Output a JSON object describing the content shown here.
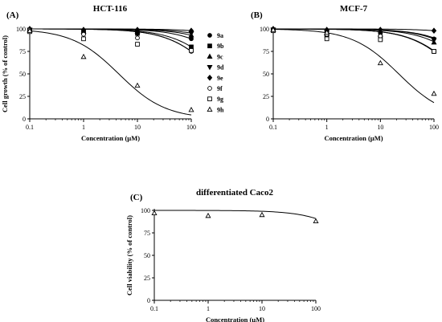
{
  "chart_data": [
    {
      "type": "scatter",
      "panel_label": "(A)",
      "title": "HCT-116",
      "xlabel": "Concentration (µM)",
      "ylabel": "Cell growth (% of control)",
      "x_scale": "log",
      "xlim": [
        0.1,
        100
      ],
      "ylim": [
        0,
        100
      ],
      "x_ticks": [
        "0.1",
        "1",
        "10",
        "100"
      ],
      "y_ticks": [
        "0",
        "25",
        "50",
        "75",
        "100"
      ],
      "legend_position": "right",
      "x": [
        0.1,
        1,
        10,
        100
      ],
      "series": [
        {
          "name": "9a",
          "marker": "circle-filled",
          "values": [
            99,
            97,
            96,
            89
          ],
          "fit": {
            "ic50": 800,
            "hill": 1
          }
        },
        {
          "name": "9b",
          "marker": "square-filled",
          "values": [
            98,
            96,
            95,
            80
          ],
          "fit": {
            "ic50": 400,
            "hill": 1
          }
        },
        {
          "name": "9c",
          "marker": "triangle-up-filled",
          "values": [
            99,
            97,
            97,
            93
          ],
          "fit": {
            "ic50": 1300,
            "hill": 1
          }
        },
        {
          "name": "9d",
          "marker": "triangle-down-filled",
          "values": [
            99,
            98,
            97,
            95
          ],
          "fit": {
            "ic50": 2000,
            "hill": 1
          }
        },
        {
          "name": "9e",
          "marker": "diamond-filled",
          "values": [
            100,
            99,
            99,
            98
          ],
          "fit": {
            "ic50": 5000,
            "hill": 1
          }
        },
        {
          "name": "9f",
          "marker": "circle-open",
          "values": [
            99,
            94,
            90,
            75
          ],
          "fit": {
            "ic50": 300,
            "hill": 1
          }
        },
        {
          "name": "9g",
          "marker": "square-open",
          "values": [
            97,
            89,
            83,
            76
          ],
          "fit": {
            "ic50": 300,
            "hill": 1
          }
        },
        {
          "name": "9h",
          "marker": "triangle-up-open",
          "values": [
            98,
            69,
            37,
            10
          ],
          "fit": {
            "ic50": 4.5,
            "hill": 1
          }
        }
      ]
    },
    {
      "type": "scatter",
      "panel_label": "(B)",
      "title": "MCF-7",
      "xlabel": "Concentration (µM)",
      "ylabel": "",
      "x_scale": "log",
      "xlim": [
        0.1,
        100
      ],
      "ylim": [
        0,
        100
      ],
      "x_ticks": [
        "0.1",
        "1",
        "10",
        "100"
      ],
      "y_ticks": [
        "0",
        "25",
        "50",
        "75",
        "100"
      ],
      "x": [
        0.1,
        1,
        10,
        100
      ],
      "series": [
        {
          "name": "9a",
          "marker": "circle-filled",
          "values": [
            99,
            97,
            95,
            89
          ],
          "fit": {
            "ic50": 800,
            "hill": 1
          }
        },
        {
          "name": "9b",
          "marker": "square-filled",
          "values": [
            99,
            92,
            89,
            75
          ],
          "fit": {
            "ic50": 300,
            "hill": 1
          }
        },
        {
          "name": "9c",
          "marker": "triangle-up-filled",
          "values": [
            99,
            95,
            94,
            85
          ],
          "fit": {
            "ic50": 600,
            "hill": 1
          }
        },
        {
          "name": "9d",
          "marker": "triangle-down-filled",
          "values": [
            99,
            96,
            95,
            88
          ],
          "fit": {
            "ic50": 900,
            "hill": 1
          }
        },
        {
          "name": "9e",
          "marker": "diamond-filled",
          "values": [
            100,
            99,
            99,
            98
          ],
          "fit": {
            "ic50": 5000,
            "hill": 1
          }
        },
        {
          "name": "9f",
          "marker": "circle-open",
          "values": [
            99,
            94,
            92,
            75
          ],
          "fit": {
            "ic50": 310,
            "hill": 1
          }
        },
        {
          "name": "9g",
          "marker": "square-open",
          "values": [
            98,
            89,
            88,
            75
          ],
          "fit": {
            "ic50": 300,
            "hill": 1
          }
        },
        {
          "name": "9h",
          "marker": "triangle-up-open",
          "values": [
            99,
            96,
            62,
            28
          ],
          "fit": {
            "ic50": 22,
            "hill": 1
          }
        }
      ]
    },
    {
      "type": "scatter",
      "panel_label": "(C)",
      "title": "differentiated Caco2",
      "xlabel": "Concentration (µM)",
      "ylabel": "Cell viability (% of control)",
      "x_scale": "log",
      "xlim": [
        0.1,
        100
      ],
      "ylim": [
        0,
        100
      ],
      "x_ticks": [
        "0.1",
        "1",
        "10",
        "100"
      ],
      "y_ticks": [
        "0",
        "25",
        "50",
        "75",
        "100"
      ],
      "x": [
        0.1,
        1,
        10,
        100
      ],
      "series": [
        {
          "name": "",
          "marker": "triangle-up-open",
          "values": [
            97,
            94,
            95,
            88
          ],
          "fit": {
            "ic50": 1000,
            "hill": 1
          }
        }
      ]
    }
  ]
}
